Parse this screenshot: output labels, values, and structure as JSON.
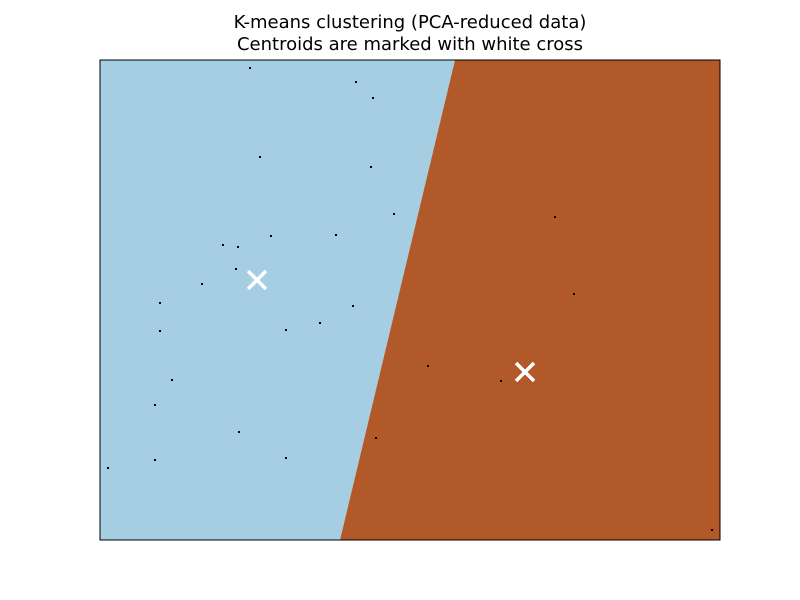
{
  "chart_data": {
    "type": "scatter",
    "title": "K-means clustering (PCA-reduced data)",
    "subtitle": "Centroids are marked with white cross",
    "xlabel": "",
    "ylabel": "",
    "xticks": [],
    "yticks": [],
    "xlim": [
      0,
      620
    ],
    "ylim": [
      0,
      480
    ],
    "grid": false,
    "legend": "none",
    "regions": [
      {
        "name": "cluster-0",
        "color": "#a6cee3",
        "polygon": [
          [
            0,
            480
          ],
          [
            355,
            480
          ],
          [
            240,
            0
          ],
          [
            0,
            0
          ]
        ]
      },
      {
        "name": "cluster-1",
        "color": "#b15928",
        "polygon": [
          [
            355,
            480
          ],
          [
            620,
            480
          ],
          [
            620,
            0
          ],
          [
            240,
            0
          ]
        ]
      }
    ],
    "centroids": [
      {
        "x": 157,
        "y": 260,
        "color": "#ffffff",
        "marker": "x"
      },
      {
        "x": 425,
        "y": 168,
        "color": "#ffffff",
        "marker": "x"
      }
    ],
    "points": [
      [
        150,
        472
      ],
      [
        256,
        458
      ],
      [
        273,
        442
      ],
      [
        160,
        383
      ],
      [
        271,
        373
      ],
      [
        236,
        305
      ],
      [
        171,
        304
      ],
      [
        294,
        326
      ],
      [
        123,
        295
      ],
      [
        138,
        293
      ],
      [
        102,
        256
      ],
      [
        136,
        271
      ],
      [
        60,
        237
      ],
      [
        186,
        210
      ],
      [
        60,
        209
      ],
      [
        220,
        217
      ],
      [
        253,
        234
      ],
      [
        72,
        160
      ],
      [
        55,
        135
      ],
      [
        139,
        108
      ],
      [
        186,
        82
      ],
      [
        55,
        80
      ],
      [
        8,
        72
      ],
      [
        328,
        174
      ],
      [
        401,
        159
      ],
      [
        455,
        323
      ],
      [
        474,
        246
      ],
      [
        276,
        102
      ],
      [
        612,
        10
      ]
    ],
    "point_color": "#000000"
  }
}
